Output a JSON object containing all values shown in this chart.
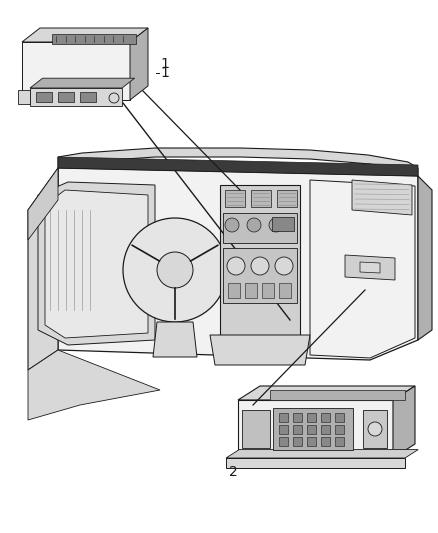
{
  "background_color": "#ffffff",
  "figure_width": 4.38,
  "figure_height": 5.33,
  "dpi": 100,
  "module1_label": "1",
  "module2_label": "2",
  "line_color": "#1a1a1a",
  "fill_light": "#f2f2f2",
  "fill_mid": "#d8d8d8",
  "fill_dark": "#b0b0b0",
  "fill_darker": "#888888"
}
